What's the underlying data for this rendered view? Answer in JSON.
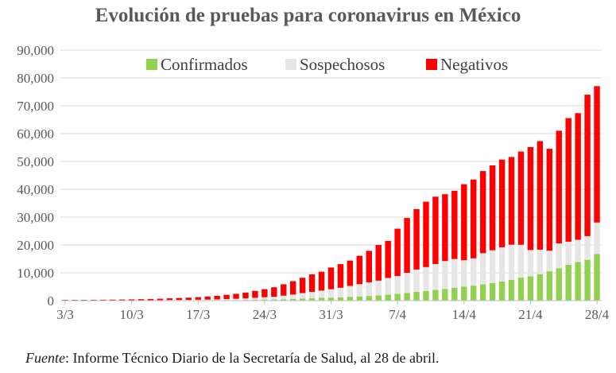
{
  "chart_data": {
    "type": "bar",
    "stacked": true,
    "title": "Evolución de pruebas para coronavirus en México",
    "x": [
      "3/3",
      "4/3",
      "5/3",
      "6/3",
      "7/3",
      "8/3",
      "9/3",
      "10/3",
      "11/3",
      "12/3",
      "13/3",
      "14/3",
      "15/3",
      "16/3",
      "17/3",
      "18/3",
      "19/3",
      "20/3",
      "21/3",
      "22/3",
      "23/3",
      "24/3",
      "25/3",
      "26/3",
      "27/3",
      "28/3",
      "29/3",
      "30/3",
      "31/3",
      "1/4",
      "2/4",
      "3/4",
      "4/4",
      "5/4",
      "6/4",
      "7/4",
      "8/4",
      "9/4",
      "10/4",
      "11/4",
      "12/4",
      "13/4",
      "14/4",
      "15/4",
      "16/4",
      "17/4",
      "18/4",
      "19/4",
      "20/4",
      "21/4",
      "22/4",
      "23/4",
      "24/4",
      "25/4",
      "26/4",
      "27/4",
      "28/4"
    ],
    "xtick_labels": [
      "3/3",
      "10/3",
      "17/3",
      "24/3",
      "31/3",
      "7/4",
      "14/4",
      "21/4",
      "28/4"
    ],
    "ylim": [
      0,
      90000
    ],
    "yticks": [
      0,
      10000,
      20000,
      30000,
      40000,
      50000,
      60000,
      70000,
      80000,
      90000
    ],
    "ytick_labels": [
      "0",
      "10,000",
      "20,000",
      "30,000",
      "40,000",
      "50,000",
      "60,000",
      "70,000",
      "80,000",
      "90,000"
    ],
    "legend_position": "top",
    "grid": true,
    "series": [
      {
        "name": "Confirmados",
        "color": "#92d050",
        "values": [
          5,
          5,
          5,
          5,
          5,
          7,
          7,
          7,
          11,
          12,
          16,
          26,
          41,
          53,
          82,
          93,
          118,
          164,
          203,
          251,
          316,
          367,
          405,
          475,
          585,
          717,
          848,
          993,
          1094,
          1215,
          1378,
          1510,
          1688,
          1890,
          2143,
          2439,
          2785,
          3181,
          3441,
          3844,
          4219,
          4661,
          5014,
          5399,
          5847,
          6297,
          6875,
          7497,
          8261,
          8772,
          9501,
          10544,
          11633,
          12872,
          13842,
          14677,
          16752
        ]
      },
      {
        "name": "Sospechosos",
        "color": "#e6e6e6",
        "values": [
          40,
          40,
          45,
          50,
          55,
          60,
          80,
          90,
          110,
          130,
          150,
          175,
          200,
          220,
          240,
          280,
          320,
          380,
          450,
          550,
          700,
          850,
          1000,
          1300,
          1600,
          2000,
          2300,
          2600,
          3000,
          3400,
          3900,
          4400,
          4900,
          5300,
          6000,
          6400,
          7200,
          8000,
          8600,
          9300,
          10000,
          10300,
          9500,
          9800,
          11200,
          11800,
          12300,
          12600,
          11800,
          9400,
          8800,
          7400,
          8900,
          8300,
          8000,
          8500,
          11300
        ]
      },
      {
        "name": "Negativos",
        "color": "#ff0000",
        "values": [
          220,
          230,
          240,
          250,
          270,
          290,
          320,
          360,
          410,
          470,
          540,
          620,
          700,
          800,
          950,
          1100,
          1300,
          1550,
          1800,
          2100,
          2500,
          2900,
          3400,
          4100,
          4800,
          5500,
          6300,
          6800,
          7800,
          8500,
          9100,
          10200,
          11300,
          12800,
          13300,
          17000,
          19700,
          21700,
          23500,
          24200,
          24000,
          24500,
          27300,
          28300,
          29500,
          30500,
          31500,
          31500,
          33500,
          37000,
          39000,
          36600,
          40500,
          44400,
          45500,
          50800,
          49000
        ]
      }
    ]
  },
  "source": {
    "label": "Fuente",
    "text": ": Informe Técnico Diario de la Secretaría de Salud, al 28 de abril."
  }
}
